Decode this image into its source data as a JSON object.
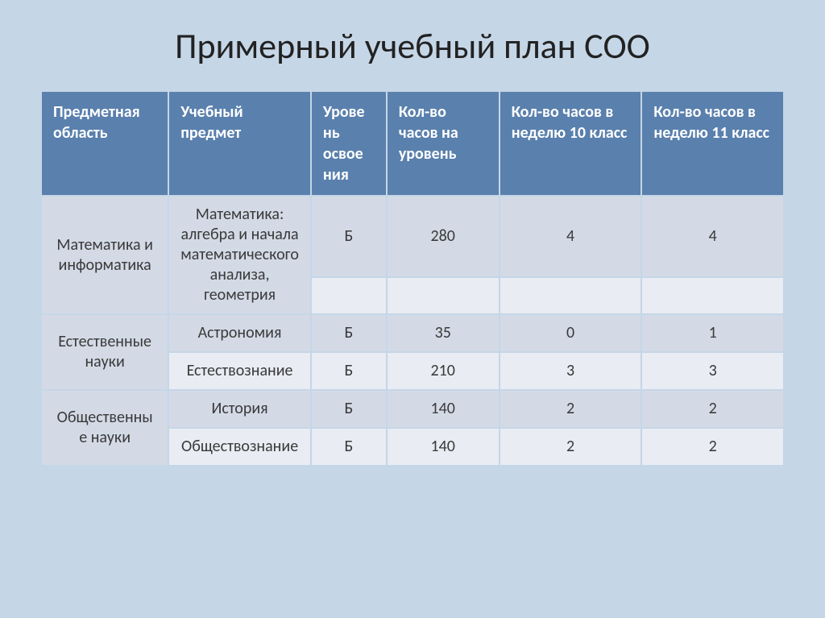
{
  "title": "Примерный учебный план СОО",
  "table": {
    "columns": [
      "Предметная область",
      "Учебный предмет",
      "Урове\nнь освое\nния",
      "Кол-во часов на уровень",
      "Кол-во часов в неделю 10 класс",
      "Кол-во часов в неделю 11 класс"
    ],
    "col_widths": [
      "17%",
      "19%",
      "10%",
      "15%",
      "19%",
      "19%"
    ],
    "header_bg": "#5a80ad",
    "header_fg": "#ffffff",
    "band_a_bg": "#d3dae6",
    "band_b_bg": "#e9ecf3",
    "rows": [
      {
        "area": "Математика и информатика",
        "area_rowspan": 2,
        "subject": "Математика: алгебра и начала математического анализа, геометрия",
        "subject_rowspan": 2,
        "level": "Б",
        "hours_total": "280",
        "hours_10": "4",
        "hours_11": "4",
        "band": "a"
      },
      {
        "level": "",
        "hours_total": "",
        "hours_10": "",
        "hours_11": "",
        "band": "b"
      },
      {
        "area": "Естественные науки",
        "area_rowspan": 2,
        "subject": "Астрономия",
        "level": "Б",
        "hours_total": "35",
        "hours_10": "0",
        "hours_11": "1",
        "band": "a"
      },
      {
        "subject": "Естествознание",
        "level": "Б",
        "hours_total": "210",
        "hours_10": "3",
        "hours_11": "3",
        "band": "b"
      },
      {
        "area": "Общественны\nе науки",
        "area_rowspan": 2,
        "subject": "История",
        "level": "Б",
        "hours_total": "140",
        "hours_10": "2",
        "hours_11": "2",
        "band": "a"
      },
      {
        "subject": "Обществознание",
        "level": "Б",
        "hours_total": "140",
        "hours_10": "2",
        "hours_11": "2",
        "band": "b"
      }
    ]
  },
  "page_bg": "#c5d6e7",
  "title_fontsize": 44,
  "cell_fontsize": 20
}
